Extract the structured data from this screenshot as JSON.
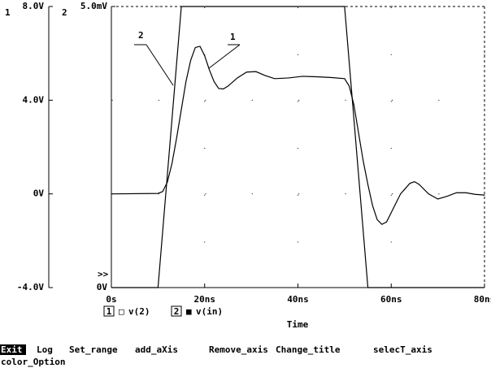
{
  "chart_data": {
    "type": "line",
    "y_axis_label": "1",
    "y2_axis_label": "2",
    "x_axis_label": "Time",
    "xlim": [
      0,
      80
    ],
    "xticks": [
      {
        "value": 0,
        "label": "0s"
      },
      {
        "value": 20,
        "label": "20ns"
      },
      {
        "value": 40,
        "label": "40ns"
      },
      {
        "value": 60,
        "label": "60ns"
      },
      {
        "value": 80,
        "label": "80ns"
      }
    ],
    "ylim": [
      -4,
      8
    ],
    "yticks": [
      {
        "value": -4,
        "label": "-4.0V"
      },
      {
        "value": 0,
        "label": "0V"
      },
      {
        "value": 4,
        "label": "4.0V"
      },
      {
        "value": 8,
        "label": "8.0V"
      }
    ],
    "y2lim": [
      0,
      5
    ],
    "y2ticks": [
      {
        "value": 0,
        "label": "0V"
      },
      {
        "value": 5,
        "label": "5.0mV"
      }
    ],
    "grid": true,
    "series": [
      {
        "name": "v(2)",
        "number": "1",
        "symbol": "□",
        "color": "#000000",
        "x": [
          0,
          10,
          11,
          12,
          13,
          14,
          15,
          16,
          17,
          18,
          19,
          20,
          21,
          22,
          23,
          24,
          25,
          27,
          29,
          31,
          33,
          35,
          38,
          41,
          44,
          47,
          50,
          51,
          52,
          53,
          54,
          55,
          56,
          57,
          58,
          59,
          60,
          62,
          64,
          65,
          66,
          68,
          70,
          72,
          74,
          76,
          78,
          80
        ],
        "values": [
          0,
          0.02,
          0.1,
          0.5,
          1.3,
          2.4,
          3.6,
          4.8,
          5.7,
          6.25,
          6.3,
          5.9,
          5.3,
          4.8,
          4.5,
          4.48,
          4.6,
          4.95,
          5.2,
          5.22,
          5.05,
          4.92,
          4.95,
          5.02,
          5.0,
          4.97,
          4.92,
          4.6,
          3.8,
          2.6,
          1.4,
          0.4,
          -0.5,
          -1.1,
          -1.3,
          -1.2,
          -0.8,
          0.0,
          0.45,
          0.52,
          0.4,
          0.0,
          -0.22,
          -0.1,
          0.05,
          0.05,
          -0.02,
          -0.05
        ]
      },
      {
        "name": "v(in)",
        "number": "2",
        "symbol": "■",
        "color": "#000000",
        "axis": "y2",
        "x": [
          0,
          10,
          15,
          50,
          55,
          80
        ],
        "values": [
          0,
          0,
          5,
          5,
          0,
          0
        ]
      }
    ],
    "annotations": [
      {
        "text": "1"
      },
      {
        "text": "2"
      }
    ],
    "marker": ">>"
  },
  "menu": [
    "Exit",
    "Log",
    "Set_range",
    "add_aXis",
    "Remove_axis",
    "Change_title",
    "selecT_axis",
    "color_Option"
  ]
}
